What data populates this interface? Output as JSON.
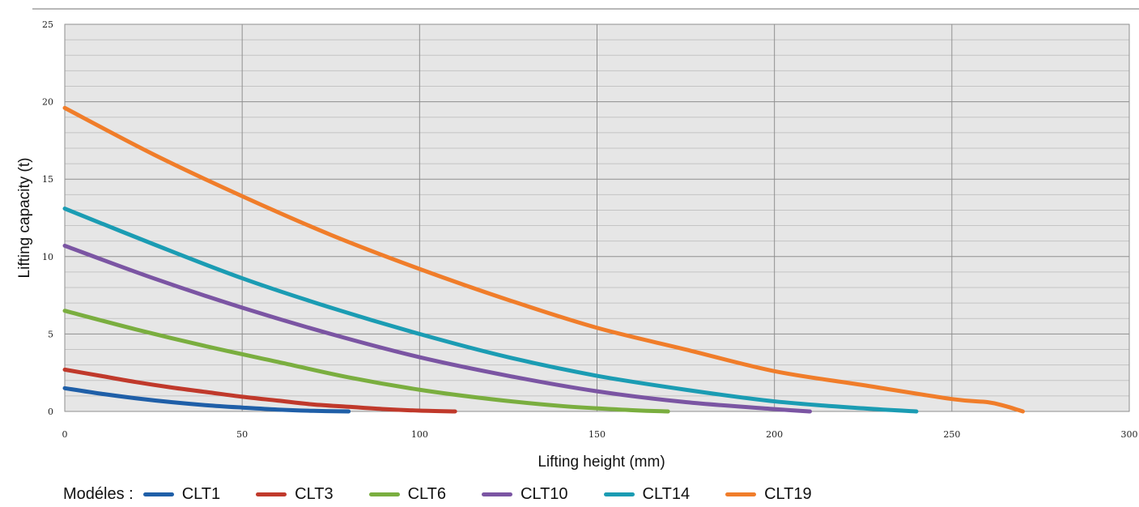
{
  "chart_data": {
    "type": "line",
    "xlabel": "Lifting height (mm)",
    "ylabel": "Lifting capacity (t)",
    "xlim": [
      0,
      300
    ],
    "ylim": [
      0,
      25
    ],
    "x_ticks": [
      "0",
      "50",
      "100",
      "150",
      "200",
      "250",
      "300"
    ],
    "y_ticks": [
      "0",
      "5",
      "10",
      "15",
      "20",
      "25"
    ],
    "grid": true,
    "legend_position": "bottom",
    "legend_title": "Modéles :",
    "series": [
      {
        "name": "CLT1",
        "color": "#1f5fa8",
        "x": [
          0,
          10,
          20,
          30,
          40,
          50,
          60,
          70,
          80
        ],
        "y": [
          1.5,
          1.15,
          0.85,
          0.6,
          0.4,
          0.25,
          0.12,
          0.04,
          0
        ]
      },
      {
        "name": "CLT3",
        "color": "#c0392b",
        "x": [
          0,
          10,
          20,
          30,
          40,
          50,
          60,
          70,
          80,
          90,
          100,
          110
        ],
        "y": [
          2.7,
          2.3,
          1.9,
          1.55,
          1.25,
          0.95,
          0.7,
          0.45,
          0.3,
          0.15,
          0.05,
          0
        ]
      },
      {
        "name": "CLT6",
        "color": "#7aae3f",
        "x": [
          0,
          20,
          40,
          60,
          80,
          100,
          120,
          140,
          160,
          170
        ],
        "y": [
          6.5,
          5.3,
          4.2,
          3.2,
          2.2,
          1.4,
          0.8,
          0.35,
          0.08,
          0
        ]
      },
      {
        "name": "CLT10",
        "color": "#7b55a3",
        "x": [
          0,
          25,
          50,
          75,
          100,
          125,
          150,
          175,
          200,
          210
        ],
        "y": [
          10.7,
          8.6,
          6.7,
          5.0,
          3.5,
          2.3,
          1.3,
          0.6,
          0.15,
          0
        ]
      },
      {
        "name": "CLT14",
        "color": "#1b9cb3",
        "x": [
          0,
          25,
          50,
          75,
          100,
          125,
          150,
          175,
          200,
          225,
          240
        ],
        "y": [
          13.1,
          10.8,
          8.6,
          6.7,
          5.0,
          3.5,
          2.3,
          1.4,
          0.65,
          0.2,
          0
        ]
      },
      {
        "name": "CLT19",
        "color": "#f07d2a",
        "x": [
          0,
          25,
          50,
          75,
          100,
          125,
          150,
          175,
          200,
          225,
          250,
          260,
          265,
          270
        ],
        "y": [
          19.6,
          16.6,
          13.9,
          11.4,
          9.2,
          7.2,
          5.4,
          4.0,
          2.6,
          1.7,
          0.8,
          0.6,
          0.35,
          0
        ]
      }
    ]
  }
}
